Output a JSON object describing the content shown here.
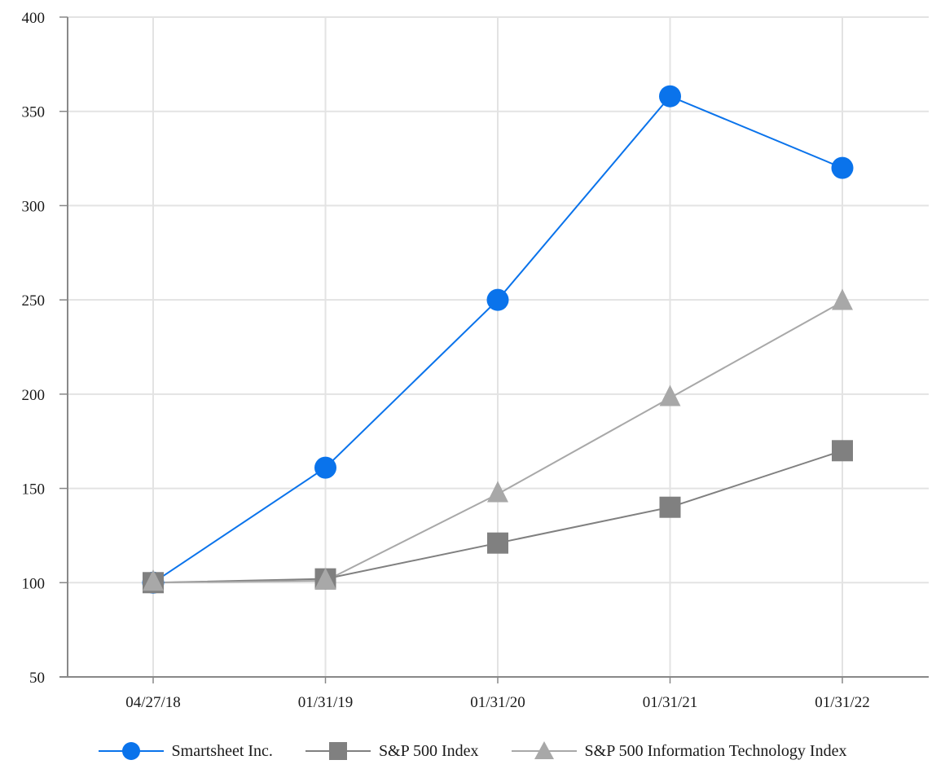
{
  "chart_data": {
    "type": "line",
    "categories": [
      "04/27/18",
      "01/31/19",
      "01/31/20",
      "01/31/21",
      "01/31/22"
    ],
    "series": [
      {
        "name": "Smartsheet Inc.",
        "values": [
          100,
          161,
          250,
          358,
          320
        ],
        "color": "#0a73eb",
        "marker": "circle"
      },
      {
        "name": "S&P 500 Index",
        "values": [
          100,
          102,
          121,
          140,
          170
        ],
        "color": "#808080",
        "marker": "square"
      },
      {
        "name": "S&P 500 Information Technology Index",
        "values": [
          100,
          101,
          147,
          198,
          249
        ],
        "color": "#a8a8a8",
        "marker": "triangle"
      }
    ],
    "yticks": [
      50,
      100,
      150,
      200,
      250,
      300,
      350,
      400
    ],
    "ylim": [
      50,
      400
    ],
    "grid": true,
    "legend": "bottom",
    "title": "",
    "xlabel": "",
    "ylabel": ""
  }
}
